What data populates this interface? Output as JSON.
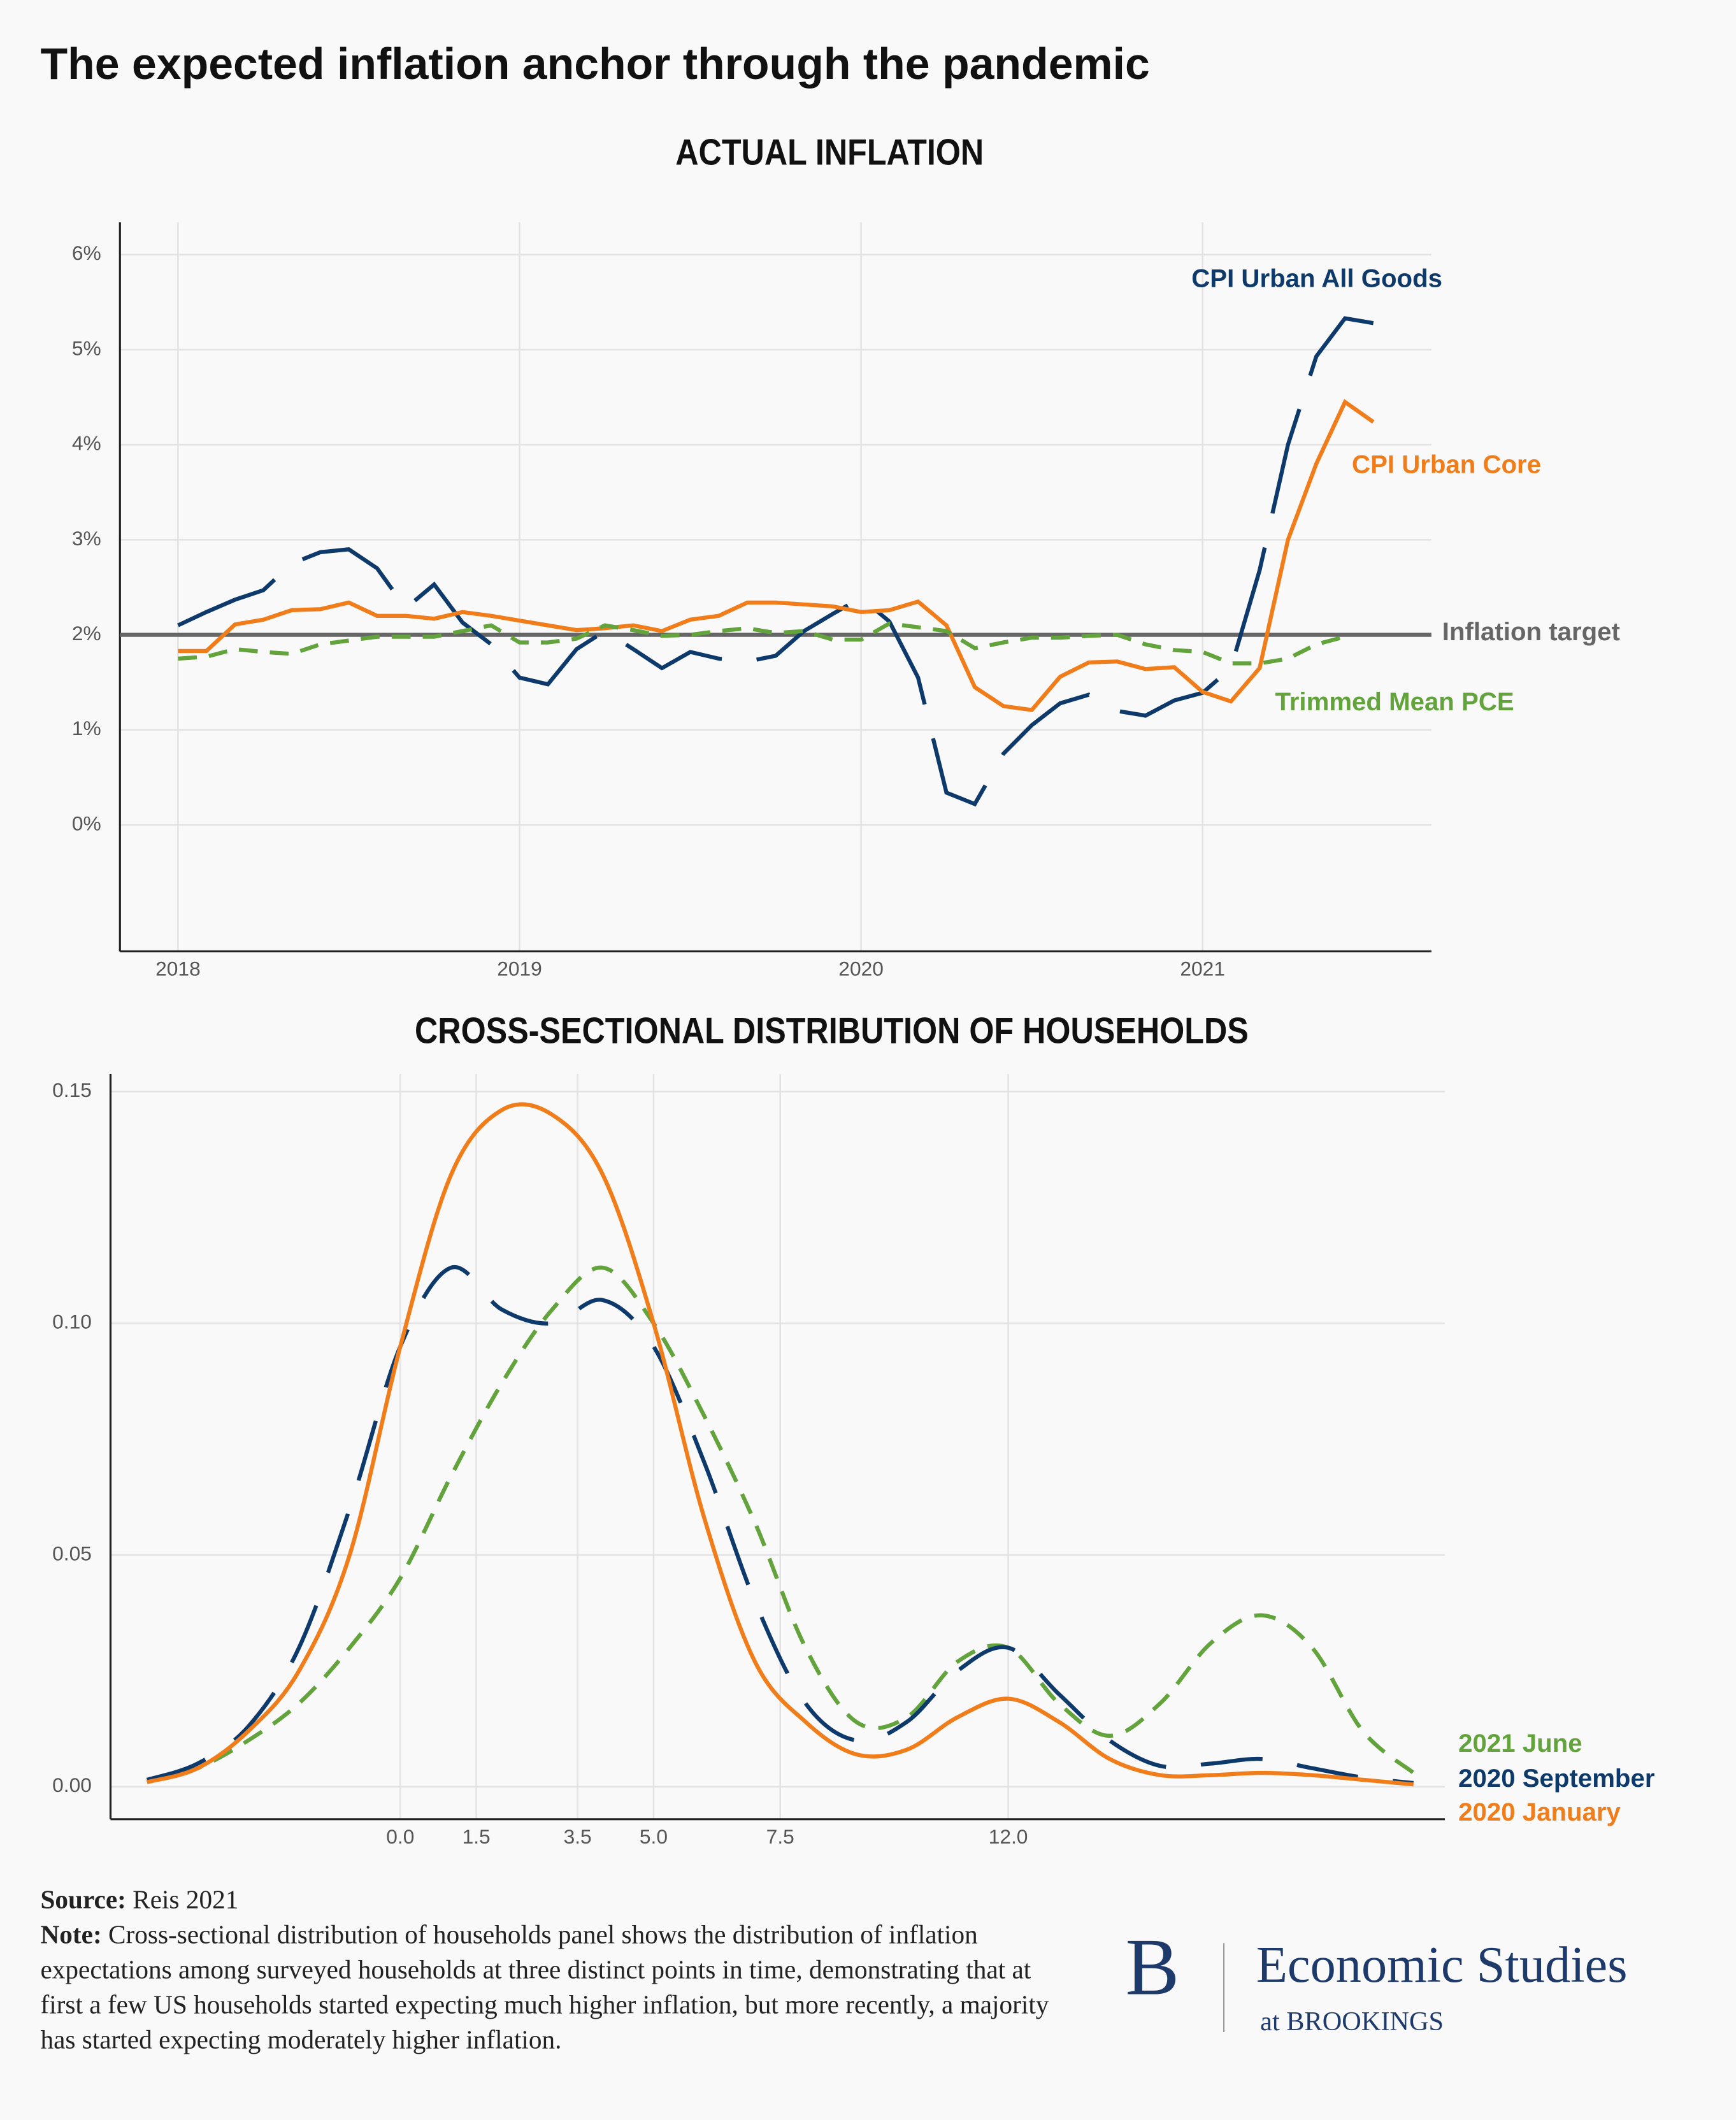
{
  "header": {
    "title": "The expected inflation anchor through the pandemic"
  },
  "chart_data": [
    {
      "type": "line",
      "title": "ACTUAL INFLATION",
      "x": [
        2018,
        2018.083,
        2018.167,
        2018.25,
        2018.333,
        2018.417,
        2018.5,
        2018.583,
        2018.667,
        2018.75,
        2018.833,
        2018.917,
        2019,
        2019.083,
        2019.167,
        2019.25,
        2019.333,
        2019.417,
        2019.5,
        2019.583,
        2019.667,
        2019.75,
        2019.833,
        2019.917,
        2020,
        2020.083,
        2020.167,
        2020.25,
        2020.333,
        2020.417,
        2020.5,
        2020.583,
        2020.667,
        2020.75,
        2020.833,
        2020.917,
        2021,
        2021.083,
        2021.167,
        2021.25,
        2021.333,
        2021.417,
        2021.5
      ],
      "xlim": [
        2017.83,
        2021.67
      ],
      "xticks": [
        2018,
        2019,
        2020,
        2021
      ],
      "ylim": [
        -1.33,
        6.34
      ],
      "yticks": [
        {
          "value": 0,
          "label": "0%"
        },
        {
          "value": 1,
          "label": "1%"
        },
        {
          "value": 2,
          "label": "2%"
        },
        {
          "value": 3,
          "label": "3%"
        },
        {
          "value": 4,
          "label": "4%"
        },
        {
          "value": 5,
          "label": "5%"
        },
        {
          "value": 6,
          "label": "6%"
        }
      ],
      "grid": true,
      "reference_line": {
        "value": 2,
        "label": "Inflation target",
        "color": "#666666"
      },
      "series": [
        {
          "name": "CPI Urban All Goods",
          "color": "#0d3a6b",
          "line_style": "long-dash",
          "values": [
            2.1,
            2.24,
            2.37,
            2.47,
            2.75,
            2.87,
            2.9,
            2.7,
            2.28,
            2.53,
            2.13,
            1.9,
            1.55,
            1.48,
            1.85,
            2.04,
            1.85,
            1.65,
            1.82,
            1.75,
            1.72,
            1.78,
            2.04,
            2.22,
            2.39,
            2.14,
            1.55,
            0.34,
            0.22,
            0.75,
            1.05,
            1.28,
            1.37,
            1.2,
            1.15,
            1.31,
            1.39,
            1.65,
            2.68,
            4.0,
            4.93,
            5.33,
            5.28
          ]
        },
        {
          "name": "CPI Urban Core",
          "color": "#f07d1a",
          "line_style": "solid",
          "values": [
            1.83,
            1.83,
            2.11,
            2.16,
            2.26,
            2.27,
            2.34,
            2.2,
            2.2,
            2.17,
            2.24,
            2.2,
            2.15,
            2.1,
            2.05,
            2.07,
            2.1,
            2.04,
            2.16,
            2.2,
            2.34,
            2.34,
            2.32,
            2.3,
            2.24,
            2.26,
            2.35,
            2.1,
            1.45,
            1.25,
            1.21,
            1.56,
            1.71,
            1.72,
            1.64,
            1.66,
            1.4,
            1.3,
            1.65,
            3.0,
            3.8,
            4.45,
            4.24
          ]
        },
        {
          "name": "Trimmed Mean PCE",
          "color": "#62a33c",
          "line_style": "dash",
          "values": [
            1.75,
            1.77,
            1.85,
            1.82,
            1.8,
            1.9,
            1.94,
            1.98,
            1.98,
            1.98,
            2.04,
            2.1,
            1.92,
            1.92,
            1.96,
            2.1,
            2.05,
            1.99,
            2.0,
            2.04,
            2.07,
            2.02,
            2.04,
            1.95,
            1.95,
            2.12,
            2.08,
            2.04,
            1.86,
            1.92,
            1.97,
            1.97,
            1.99,
            2.0,
            1.9,
            1.84,
            1.82,
            1.7,
            1.7,
            1.75,
            1.9,
            1.98,
            null
          ]
        }
      ]
    },
    {
      "type": "line",
      "title": "CROSS-SECTIONAL DISTRIBUTION OF HOUSEHOLDS",
      "x": [
        -5,
        -4,
        -3,
        -2,
        -1,
        0,
        1,
        2,
        3,
        4,
        5,
        6,
        7,
        8,
        9,
        10,
        11,
        12,
        13,
        14,
        15,
        16,
        17,
        18,
        19,
        20
      ],
      "xlim": [
        -5.72,
        20.62
      ],
      "xticks": [
        {
          "value": 0,
          "label": "0.0"
        },
        1.5,
        3.5,
        {
          "value": 5,
          "label": "5.0"
        },
        7.5,
        {
          "value": 12,
          "label": "12.0"
        }
      ],
      "ylim": [
        -0.007,
        0.1538
      ],
      "yticks": [
        {
          "value": 0,
          "label": "0.00"
        },
        0.05,
        {
          "value": 0.1,
          "label": "0.10"
        },
        0.15
      ],
      "grid": true,
      "series": [
        {
          "name": "2021 June",
          "color": "#62a33c",
          "line_style": "dash",
          "values": [
            0.001,
            0.004,
            0.01,
            0.018,
            0.03,
            0.045,
            0.067,
            0.087,
            0.103,
            0.112,
            0.1,
            0.08,
            0.057,
            0.03,
            0.014,
            0.015,
            0.027,
            0.03,
            0.018,
            0.011,
            0.018,
            0.031,
            0.037,
            0.03,
            0.012,
            0.003
          ]
        },
        {
          "name": "2020 September",
          "color": "#0d3a6b",
          "line_style": "long-dash",
          "values": [
            0.0015,
            0.005,
            0.013,
            0.03,
            0.06,
            0.095,
            0.112,
            0.103,
            0.1,
            0.105,
            0.095,
            0.07,
            0.04,
            0.018,
            0.01,
            0.014,
            0.025,
            0.03,
            0.02,
            0.01,
            0.0045,
            0.005,
            0.006,
            0.004,
            0.002,
            0.0008
          ]
        },
        {
          "name": "2020 January",
          "color": "#f07d1a",
          "line_style": "solid",
          "values": [
            0.001,
            0.004,
            0.012,
            0.025,
            0.05,
            0.095,
            0.132,
            0.146,
            0.145,
            0.132,
            0.1,
            0.058,
            0.027,
            0.014,
            0.007,
            0.008,
            0.015,
            0.019,
            0.014,
            0.006,
            0.0025,
            0.0025,
            0.003,
            0.0025,
            0.0015,
            0.0005
          ]
        }
      ]
    }
  ],
  "footer": {
    "source_label": "Source:",
    "source": "Reis 2021",
    "note_label": "Note:",
    "note": "Cross-sectional distribution of households panel shows the distribution of inflation expectations among surveyed households at three distinct points in time, demonstrating that at first a few US households started expecting much higher inflation, but more recently, a majority has started expecting moderately higher inflation."
  },
  "logo": {
    "letter": "B",
    "name": "Economic Studies",
    "sub": "at BROOKINGS"
  }
}
